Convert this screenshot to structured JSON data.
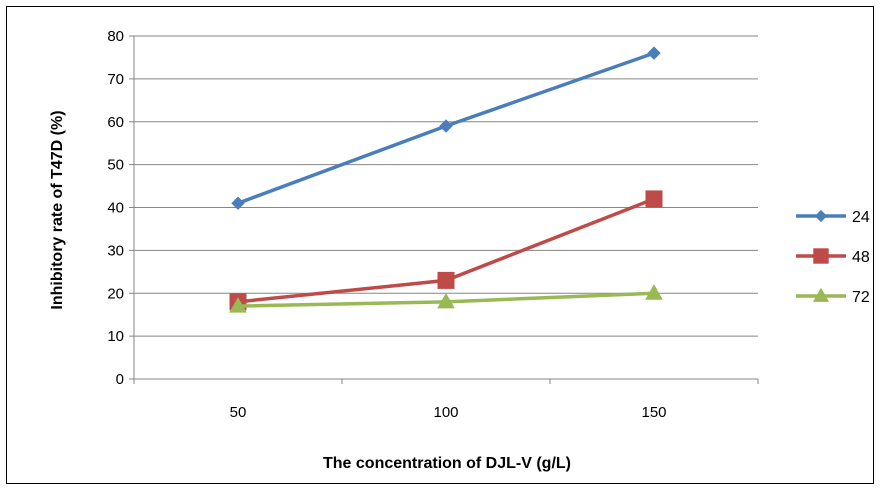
{
  "chart_data": {
    "type": "line",
    "x_categories": [
      "50",
      "100",
      "150"
    ],
    "xlabel": "The concentration of DJL-V (g/L)",
    "ylabel": "Inhibitory rate of T47D (%)",
    "ylim": [
      0,
      80
    ],
    "y_ticks": [
      0,
      10,
      20,
      30,
      40,
      50,
      60,
      70,
      80
    ],
    "grid": "horizontal",
    "legend_position": "right",
    "series": [
      {
        "name": "24",
        "values": [
          41,
          59,
          76
        ],
        "color": "#4a7ebb",
        "marker": "diamond"
      },
      {
        "name": "48",
        "values": [
          18,
          23,
          42
        ],
        "color": "#be4b48",
        "marker": "square"
      },
      {
        "name": "72",
        "values": [
          17,
          18,
          20
        ],
        "color": "#98b954",
        "marker": "triangle"
      }
    ]
  }
}
